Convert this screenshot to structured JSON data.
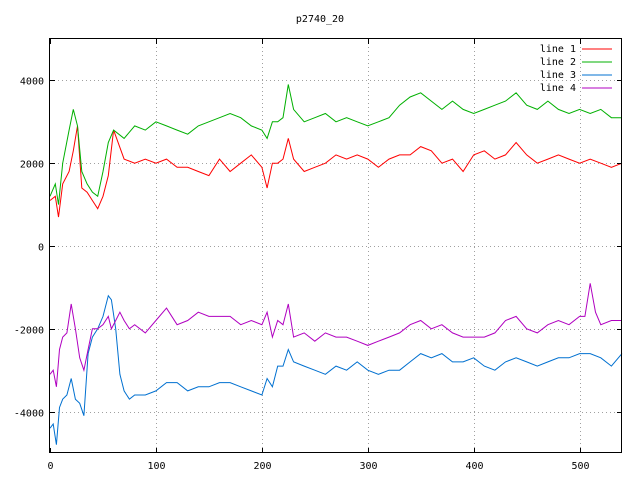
{
  "chart_data": {
    "type": "line",
    "title": "p2740_20",
    "xlabel": "",
    "ylabel": "",
    "xlim": [
      0,
      540
    ],
    "ylim": [
      -5000,
      5000
    ],
    "xticks": [
      0,
      100,
      200,
      300,
      400,
      500
    ],
    "yticks": [
      -4000,
      -2000,
      0,
      2000,
      4000
    ],
    "grid": true,
    "legend_position": "top-right",
    "series": [
      {
        "name": "line 1",
        "color": "#ff0000",
        "x": [
          0,
          5,
          8,
          12,
          18,
          22,
          26,
          30,
          35,
          40,
          45,
          50,
          55,
          60,
          70,
          80,
          90,
          100,
          110,
          120,
          130,
          140,
          150,
          160,
          170,
          180,
          190,
          200,
          205,
          210,
          215,
          220,
          225,
          230,
          240,
          250,
          260,
          270,
          280,
          290,
          300,
          310,
          320,
          330,
          340,
          350,
          360,
          370,
          380,
          390,
          400,
          410,
          420,
          430,
          440,
          450,
          460,
          470,
          480,
          490,
          500,
          510,
          520,
          530,
          540
        ],
        "values": [
          1100,
          1200,
          700,
          1500,
          1800,
          2300,
          2900,
          1400,
          1300,
          1100,
          900,
          1200,
          1700,
          2800,
          2100,
          2000,
          2100,
          2000,
          2100,
          1900,
          1900,
          1800,
          1700,
          2100,
          1800,
          2000,
          2200,
          1900,
          1400,
          2000,
          2000,
          2100,
          2600,
          2100,
          1800,
          1900,
          2000,
          2200,
          2100,
          2200,
          2100,
          1900,
          2100,
          2200,
          2200,
          2400,
          2300,
          2000,
          2100,
          1800,
          2200,
          2300,
          2100,
          2200,
          2500,
          2200,
          2000,
          2100,
          2200,
          2100,
          2000,
          2100,
          2000,
          1900,
          2000
        ]
      },
      {
        "name": "line 2",
        "color": "#00b000",
        "x": [
          0,
          5,
          8,
          12,
          18,
          22,
          26,
          30,
          35,
          40,
          45,
          50,
          55,
          60,
          70,
          80,
          90,
          100,
          110,
          120,
          130,
          140,
          150,
          160,
          170,
          180,
          190,
          200,
          205,
          210,
          215,
          220,
          225,
          230,
          240,
          250,
          260,
          270,
          280,
          290,
          300,
          310,
          320,
          330,
          340,
          350,
          360,
          370,
          380,
          390,
          400,
          410,
          420,
          430,
          440,
          450,
          460,
          470,
          480,
          490,
          500,
          510,
          520,
          530,
          540
        ],
        "values": [
          1200,
          1500,
          1000,
          2000,
          2800,
          3300,
          2900,
          1800,
          1500,
          1300,
          1200,
          1800,
          2500,
          2800,
          2600,
          2900,
          2800,
          3000,
          2900,
          2800,
          2700,
          2900,
          3000,
          3100,
          3200,
          3100,
          2900,
          2800,
          2600,
          3000,
          3000,
          3100,
          3900,
          3300,
          3000,
          3100,
          3200,
          3000,
          3100,
          3000,
          2900,
          3000,
          3100,
          3400,
          3600,
          3700,
          3500,
          3300,
          3500,
          3300,
          3200,
          3300,
          3400,
          3500,
          3700,
          3400,
          3300,
          3500,
          3300,
          3200,
          3300,
          3200,
          3300,
          3100,
          3100
        ]
      },
      {
        "name": "line 3",
        "color": "#0070d0",
        "x": [
          0,
          3,
          6,
          9,
          12,
          16,
          20,
          24,
          28,
          32,
          36,
          40,
          45,
          50,
          55,
          58,
          62,
          66,
          70,
          75,
          80,
          90,
          100,
          110,
          120,
          130,
          140,
          150,
          160,
          170,
          180,
          190,
          200,
          205,
          210,
          215,
          220,
          225,
          230,
          240,
          250,
          260,
          270,
          280,
          290,
          300,
          310,
          320,
          330,
          340,
          350,
          360,
          370,
          380,
          390,
          400,
          410,
          420,
          430,
          440,
          450,
          460,
          470,
          480,
          490,
          500,
          510,
          520,
          530,
          540
        ],
        "values": [
          -4400,
          -4300,
          -4800,
          -3900,
          -3700,
          -3600,
          -3200,
          -3700,
          -3800,
          -4100,
          -2600,
          -2200,
          -2000,
          -1700,
          -1200,
          -1300,
          -2000,
          -3100,
          -3500,
          -3700,
          -3600,
          -3600,
          -3500,
          -3300,
          -3300,
          -3500,
          -3400,
          -3400,
          -3300,
          -3300,
          -3400,
          -3500,
          -3600,
          -3200,
          -3400,
          -2900,
          -2900,
          -2500,
          -2800,
          -2900,
          -3000,
          -3100,
          -2900,
          -3000,
          -2800,
          -3000,
          -3100,
          -3000,
          -3000,
          -2800,
          -2600,
          -2700,
          -2600,
          -2800,
          -2800,
          -2700,
          -2900,
          -3000,
          -2800,
          -2700,
          -2800,
          -2900,
          -2800,
          -2700,
          -2700,
          -2600,
          -2600,
          -2700,
          -2900,
          -2600
        ]
      },
      {
        "name": "line 4",
        "color": "#b000c0",
        "x": [
          0,
          3,
          6,
          9,
          12,
          16,
          20,
          24,
          28,
          32,
          36,
          40,
          45,
          50,
          55,
          58,
          62,
          66,
          70,
          75,
          80,
          90,
          100,
          110,
          120,
          130,
          140,
          150,
          160,
          170,
          180,
          190,
          200,
          205,
          210,
          215,
          220,
          225,
          230,
          240,
          250,
          260,
          270,
          280,
          290,
          300,
          310,
          320,
          330,
          340,
          350,
          360,
          370,
          380,
          390,
          400,
          410,
          420,
          430,
          440,
          450,
          460,
          470,
          480,
          490,
          500,
          505,
          510,
          515,
          520,
          530,
          540
        ],
        "values": [
          -3100,
          -3000,
          -3400,
          -2500,
          -2200,
          -2100,
          -1400,
          -2000,
          -2700,
          -3000,
          -2500,
          -2000,
          -2000,
          -1900,
          -1700,
          -2000,
          -1800,
          -1600,
          -1800,
          -2000,
          -1900,
          -2100,
          -1800,
          -1500,
          -1900,
          -1800,
          -1600,
          -1700,
          -1700,
          -1700,
          -1900,
          -1800,
          -1900,
          -1600,
          -2200,
          -1800,
          -1900,
          -1400,
          -2200,
          -2100,
          -2300,
          -2100,
          -2200,
          -2200,
          -2300,
          -2400,
          -2300,
          -2200,
          -2100,
          -1900,
          -1800,
          -2000,
          -1900,
          -2100,
          -2200,
          -2200,
          -2200,
          -2100,
          -1800,
          -1700,
          -2000,
          -2100,
          -1900,
          -1800,
          -1900,
          -1700,
          -1700,
          -900,
          -1600,
          -1900,
          -1800,
          -1800
        ]
      }
    ]
  }
}
